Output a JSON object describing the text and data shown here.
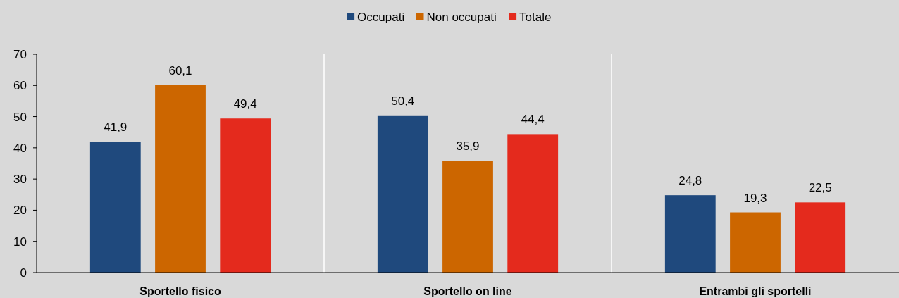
{
  "chart_data": {
    "type": "bar",
    "categories": [
      "Sportello fisico",
      "Sportello on line",
      "Entrambi gli sportelli"
    ],
    "series": [
      {
        "name": "Occupati",
        "color": "#1f497d",
        "values": [
          41.9,
          50.4,
          24.8
        ],
        "value_labels": [
          "41,9",
          "50,4",
          "24,8"
        ]
      },
      {
        "name": "Non occupati",
        "color": "#cc6600",
        "values": [
          60.1,
          35.9,
          19.3
        ],
        "value_labels": [
          "60,1",
          "35,9",
          "19,3"
        ]
      },
      {
        "name": "Totale",
        "color": "#e42a1d",
        "values": [
          49.4,
          44.4,
          22.5
        ],
        "value_labels": [
          "49,4",
          "44,4",
          "22,5"
        ]
      }
    ],
    "ylim": [
      0,
      70
    ],
    "yticks": [
      0,
      10,
      20,
      30,
      40,
      50,
      60,
      70
    ],
    "grid": "x",
    "legend": "top"
  }
}
